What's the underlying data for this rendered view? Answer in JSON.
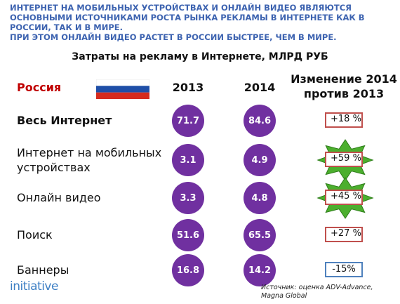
{
  "header": {
    "lines": [
      "ИНТЕРНЕТ НА МОБИЛЬНЫХ УСТРОЙСТВАХ И ОНЛАЙН ВИДЕО ЯВЛЯЮТСЯ",
      "ОСНОВНЫМИ ИСТОЧНИКАМИ РОСТА РЫНКА РЕКЛАМЫ В ИНТЕРНЕТЕ КАК В",
      "РОССИИ, ТАК И В МИРЕ.",
      "ПРИ ЭТОМ ОНЛАЙН ВИДЕО РАСТЕТ В РОССИИ БЫСТРЕЕ, ЧЕМ В МИРЕ."
    ]
  },
  "subtitle": "Затраты на рекламу в Интернете, МЛРД РУБ",
  "table": {
    "columns": [
      "Россия",
      "2013",
      "2014",
      "Изменение 2014 против 2013"
    ],
    "rows": [
      [
        "Весь Интернет",
        "71.7",
        "84.6",
        "+18 %"
      ],
      [
        "Интернет на мобильных устройствах",
        "3.1",
        "4.9",
        "+59 %"
      ],
      [
        "Онлайн видео",
        "3.3",
        "4.8",
        "+45 %"
      ],
      [
        "Поиск",
        "51.6",
        "65.5",
        "+27 %"
      ],
      [
        "Баннеры",
        "16.8",
        "14.2",
        "-15%"
      ]
    ]
  },
  "logo": "initiative",
  "source": "Источник: оценка ADV-Advance, Magna Global"
}
